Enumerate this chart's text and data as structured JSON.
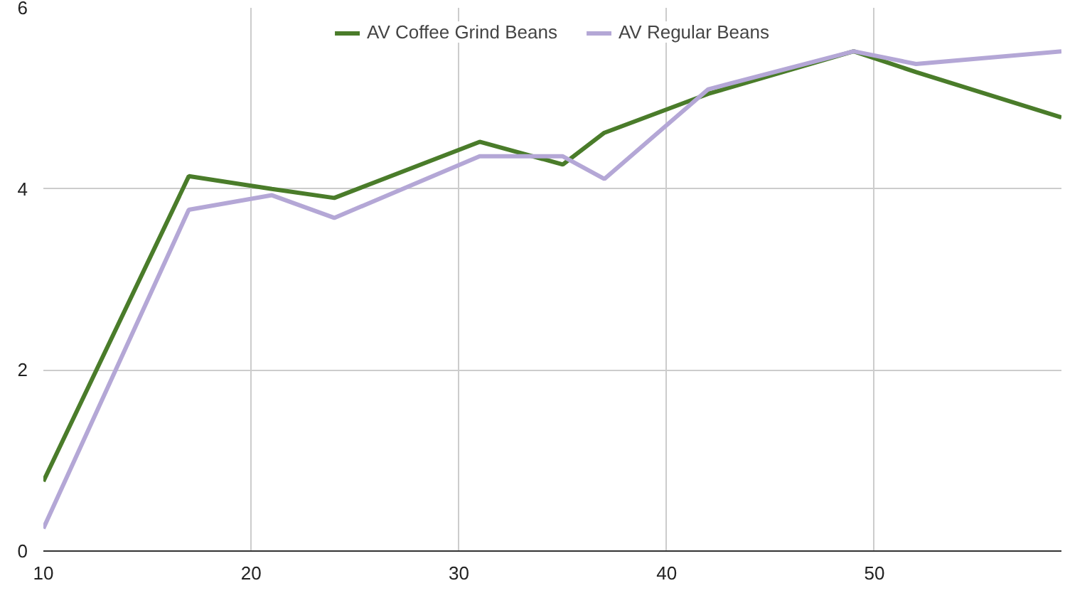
{
  "chart_data": {
    "type": "line",
    "x": [
      10,
      17,
      21,
      24,
      31,
      35,
      37,
      42,
      49,
      52,
      59
    ],
    "series": [
      {
        "name": "AV Coffee Grind Beans",
        "color": "#4a7c2a",
        "values": [
          0.77,
          4.14,
          4.0,
          3.9,
          4.52,
          4.27,
          4.62,
          5.05,
          5.52,
          5.29,
          4.79
        ]
      },
      {
        "name": "AV Regular Beans",
        "color": "#b4a7d6",
        "values": [
          0.25,
          3.77,
          3.93,
          3.68,
          4.36,
          4.36,
          4.11,
          5.1,
          5.52,
          5.38,
          5.52
        ]
      }
    ],
    "xlim": [
      10,
      59
    ],
    "ylim": [
      0,
      6
    ],
    "xticks": [
      10,
      20,
      30,
      40,
      50
    ],
    "yticks": [
      0,
      2,
      4,
      6
    ],
    "grid": true,
    "legend": "top",
    "marker": "none",
    "line_style": "solid"
  }
}
